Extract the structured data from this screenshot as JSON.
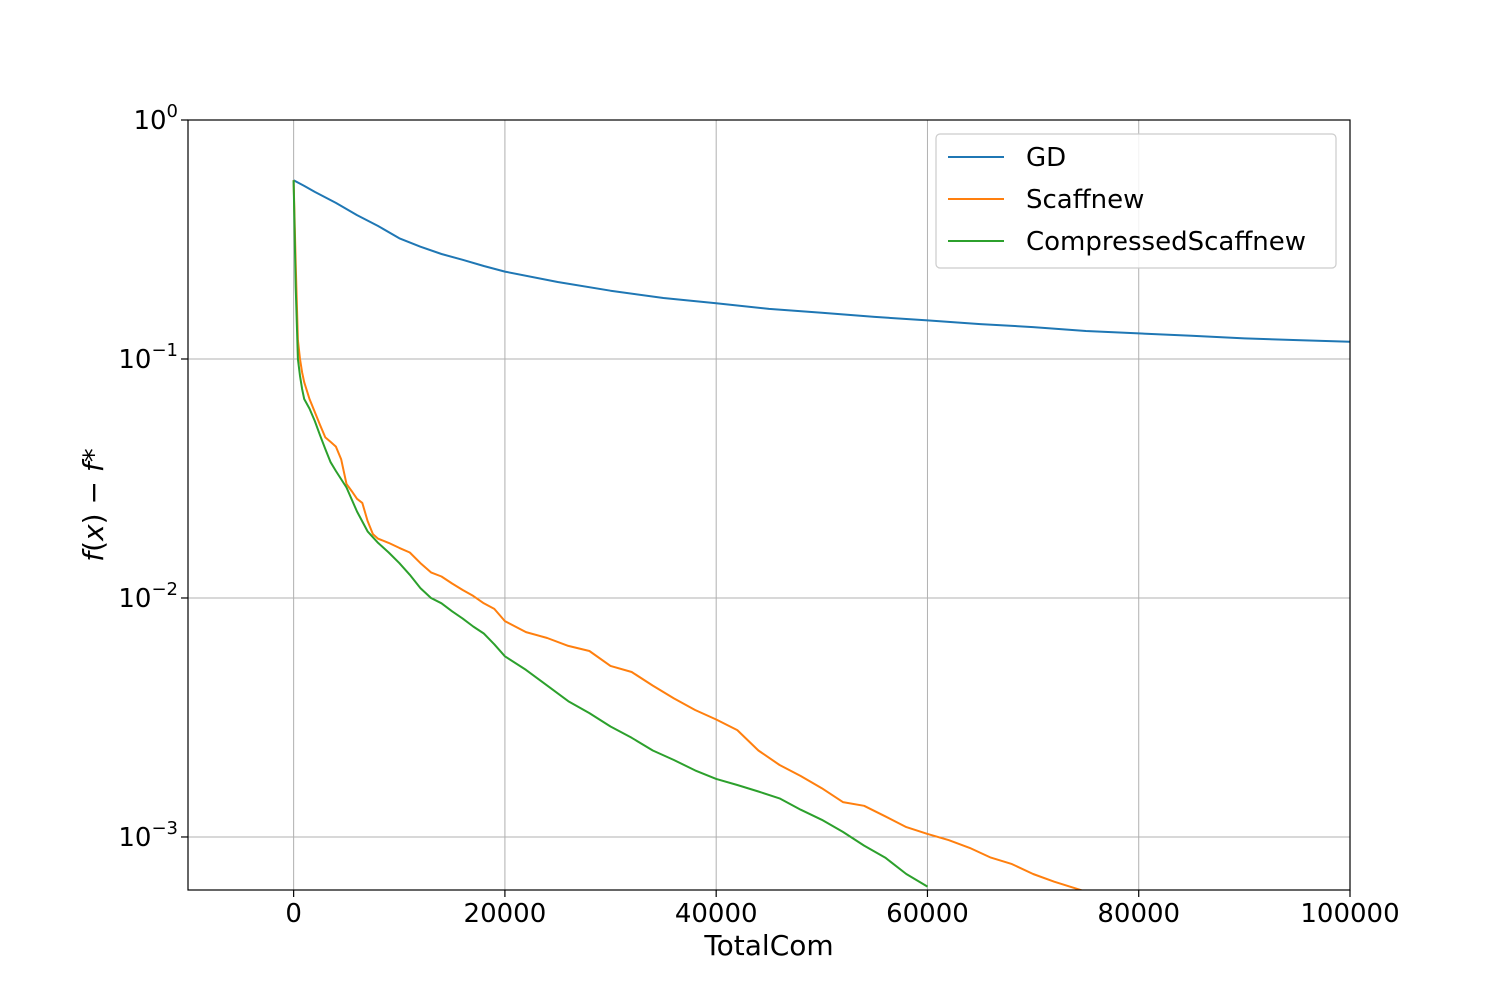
{
  "chart_data": {
    "type": "line",
    "title": "",
    "xlabel": "TotalCom",
    "ylabel_parts": [
      "f",
      "(",
      "x",
      ") − ",
      "f",
      "*"
    ],
    "xlim": [
      -10000,
      100000
    ],
    "ylim": [
      0.0006,
      1.0
    ],
    "yscale": "log",
    "grid": true,
    "legend_position": "top-right",
    "x_ticks": [
      {
        "value": 0,
        "label": "0"
      },
      {
        "value": 20000,
        "label": "20000"
      },
      {
        "value": 40000,
        "label": "40000"
      },
      {
        "value": 60000,
        "label": "60000"
      },
      {
        "value": 80000,
        "label": "80000"
      },
      {
        "value": 100000,
        "label": "100000"
      }
    ],
    "y_ticks": [
      {
        "value": 1,
        "base": "10",
        "exp": "0"
      },
      {
        "value": 0.1,
        "base": "10",
        "exp": "−1"
      },
      {
        "value": 0.01,
        "base": "10",
        "exp": "−2"
      },
      {
        "value": 0.001,
        "base": "10",
        "exp": "−3"
      }
    ],
    "series": [
      {
        "name": "GD",
        "color": "#1f77b4",
        "points": [
          [
            0,
            0.56
          ],
          [
            1000,
            0.53
          ],
          [
            2000,
            0.5
          ],
          [
            4000,
            0.45
          ],
          [
            6000,
            0.4
          ],
          [
            8000,
            0.36
          ],
          [
            10000,
            0.32
          ],
          [
            12000,
            0.295
          ],
          [
            14000,
            0.275
          ],
          [
            16000,
            0.26
          ],
          [
            18000,
            0.245
          ],
          [
            20000,
            0.232
          ],
          [
            25000,
            0.21
          ],
          [
            30000,
            0.193
          ],
          [
            35000,
            0.18
          ],
          [
            40000,
            0.171
          ],
          [
            45000,
            0.162
          ],
          [
            50000,
            0.156
          ],
          [
            55000,
            0.15
          ],
          [
            60000,
            0.145
          ],
          [
            65000,
            0.14
          ],
          [
            70000,
            0.136
          ],
          [
            75000,
            0.131
          ],
          [
            80000,
            0.128
          ],
          [
            85000,
            0.125
          ],
          [
            90000,
            0.122
          ],
          [
            95000,
            0.12
          ],
          [
            100000,
            0.118
          ]
        ]
      },
      {
        "name": "Scaffnew",
        "color": "#ff7f0e",
        "points": [
          [
            0,
            0.56
          ],
          [
            200,
            0.25
          ],
          [
            400,
            0.12
          ],
          [
            600,
            0.1
          ],
          [
            800,
            0.088
          ],
          [
            1000,
            0.08
          ],
          [
            1500,
            0.068
          ],
          [
            2000,
            0.06
          ],
          [
            2500,
            0.053
          ],
          [
            3000,
            0.047
          ],
          [
            3500,
            0.045
          ],
          [
            4000,
            0.043
          ],
          [
            4500,
            0.038
          ],
          [
            5000,
            0.03
          ],
          [
            5500,
            0.028
          ],
          [
            6000,
            0.026
          ],
          [
            6500,
            0.025
          ],
          [
            7000,
            0.021
          ],
          [
            7500,
            0.0185
          ],
          [
            8000,
            0.0177
          ],
          [
            9000,
            0.017
          ],
          [
            10000,
            0.0162
          ],
          [
            11000,
            0.0155
          ],
          [
            12000,
            0.014
          ],
          [
            13000,
            0.0128
          ],
          [
            14000,
            0.0123
          ],
          [
            15000,
            0.0115
          ],
          [
            16000,
            0.0108
          ],
          [
            17000,
            0.0102
          ],
          [
            18000,
            0.0095
          ],
          [
            19000,
            0.009
          ],
          [
            20000,
            0.008
          ],
          [
            22000,
            0.0072
          ],
          [
            24000,
            0.0068
          ],
          [
            26000,
            0.0063
          ],
          [
            28000,
            0.006
          ],
          [
            30000,
            0.0052
          ],
          [
            32000,
            0.0049
          ],
          [
            34000,
            0.0043
          ],
          [
            36000,
            0.0038
          ],
          [
            38000,
            0.0034
          ],
          [
            40000,
            0.0031
          ],
          [
            42000,
            0.0028
          ],
          [
            44000,
            0.0023
          ],
          [
            46000,
            0.002
          ],
          [
            48000,
            0.0018
          ],
          [
            50000,
            0.0016
          ],
          [
            52000,
            0.0014
          ],
          [
            54000,
            0.00135
          ],
          [
            56000,
            0.00122
          ],
          [
            58000,
            0.0011
          ],
          [
            60000,
            0.00103
          ],
          [
            62000,
            0.00097
          ],
          [
            64000,
            0.0009
          ],
          [
            66000,
            0.00082
          ],
          [
            68000,
            0.00077
          ],
          [
            70000,
            0.0007
          ],
          [
            72000,
            0.00065
          ],
          [
            74000,
            0.00061
          ],
          [
            75000,
            0.00059
          ]
        ]
      },
      {
        "name": "CompressedScaffnew",
        "color": "#2ca02c",
        "points": [
          [
            0,
            0.56
          ],
          [
            200,
            0.2
          ],
          [
            400,
            0.1
          ],
          [
            600,
            0.085
          ],
          [
            800,
            0.075
          ],
          [
            1000,
            0.068
          ],
          [
            1500,
            0.062
          ],
          [
            2000,
            0.055
          ],
          [
            2500,
            0.048
          ],
          [
            3000,
            0.042
          ],
          [
            3500,
            0.037
          ],
          [
            4000,
            0.034
          ],
          [
            5000,
            0.029
          ],
          [
            6000,
            0.023
          ],
          [
            7000,
            0.019
          ],
          [
            8000,
            0.017
          ],
          [
            9000,
            0.0155
          ],
          [
            10000,
            0.014
          ],
          [
            11000,
            0.0125
          ],
          [
            12000,
            0.011
          ],
          [
            13000,
            0.01
          ],
          [
            14000,
            0.0095
          ],
          [
            15000,
            0.0088
          ],
          [
            16000,
            0.0082
          ],
          [
            17000,
            0.0076
          ],
          [
            18000,
            0.0071
          ],
          [
            19000,
            0.0064
          ],
          [
            20000,
            0.0057
          ],
          [
            22000,
            0.005
          ],
          [
            24000,
            0.0043
          ],
          [
            26000,
            0.0037
          ],
          [
            28000,
            0.0033
          ],
          [
            30000,
            0.0029
          ],
          [
            32000,
            0.0026
          ],
          [
            34000,
            0.0023
          ],
          [
            36000,
            0.0021
          ],
          [
            38000,
            0.0019
          ],
          [
            40000,
            0.00175
          ],
          [
            42000,
            0.00165
          ],
          [
            44000,
            0.00155
          ],
          [
            46000,
            0.00145
          ],
          [
            48000,
            0.0013
          ],
          [
            50000,
            0.00118
          ],
          [
            52000,
            0.00105
          ],
          [
            54000,
            0.00092
          ],
          [
            56000,
            0.00082
          ],
          [
            58000,
            0.0007
          ],
          [
            60000,
            0.00062
          ]
        ]
      }
    ]
  }
}
